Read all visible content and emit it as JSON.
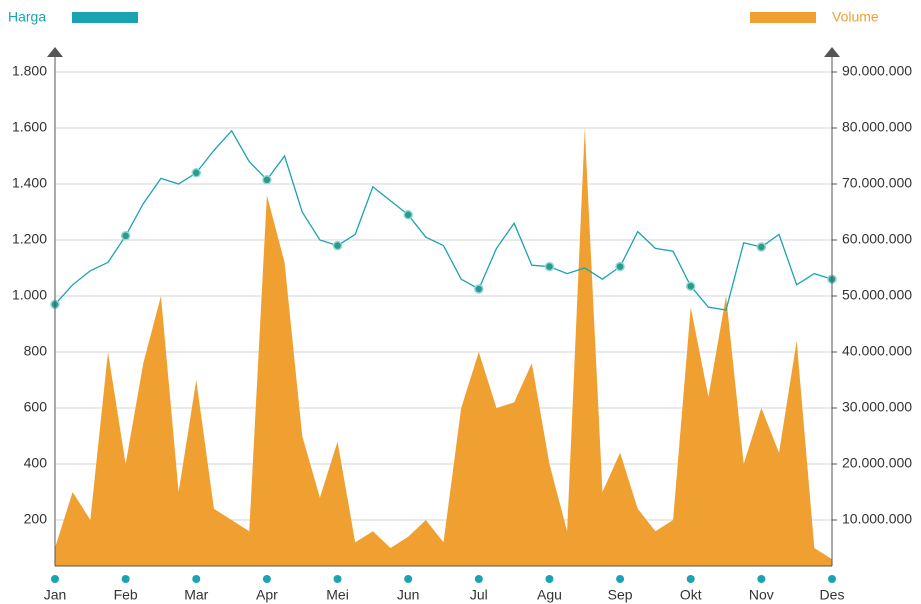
{
  "chart_data": {
    "type": "line-area",
    "categories": [
      "Jan",
      null,
      null,
      null,
      "Feb",
      null,
      null,
      null,
      "Mar",
      null,
      null,
      null,
      "Apr",
      null,
      null,
      null,
      "Mei",
      null,
      null,
      null,
      "Jun",
      null,
      null,
      null,
      "Jul",
      null,
      null,
      null,
      "Agu",
      null,
      null,
      null,
      "Sep",
      null,
      null,
      null,
      "Okt",
      null,
      null,
      null,
      "Nov",
      null,
      null,
      null,
      "Des"
    ],
    "series": [
      {
        "name": "Harga",
        "color": "#1aa3b0",
        "type": "line",
        "axis": "y",
        "values": [
          970,
          1040,
          1090,
          1120,
          1215,
          1330,
          1420,
          1400,
          1440,
          1520,
          1590,
          1480,
          1415,
          1500,
          1300,
          1200,
          1180,
          1220,
          1390,
          1340,
          1290,
          1210,
          1180,
          1060,
          1025,
          1170,
          1260,
          1110,
          1105,
          1080,
          1100,
          1060,
          1105,
          1230,
          1170,
          1160,
          1035,
          960,
          950,
          1190,
          1175,
          1220,
          1040,
          1080,
          1060
        ]
      },
      {
        "name": "Volume",
        "color": "#f0a030",
        "type": "area",
        "axis": "y2",
        "values": [
          5000000,
          15000000,
          10000000,
          40000000,
          20000000,
          38000000,
          50000000,
          15000000,
          35000000,
          12000000,
          10000000,
          8000000,
          68000000,
          56000000,
          25000000,
          14000000,
          24000000,
          6000000,
          8000000,
          5000000,
          7000000,
          10000000,
          6000000,
          30000000,
          40000000,
          30000000,
          31000000,
          38000000,
          20000000,
          8000000,
          80000000,
          15000000,
          22000000,
          12000000,
          8000000,
          10000000,
          48000000,
          32000000,
          50000000,
          20000000,
          30000000,
          22000000,
          42000000,
          5000000,
          3000000
        ]
      }
    ],
    "ylim": [
      0,
      1800
    ],
    "yticks": [
      200,
      400,
      600,
      800,
      {
        "value": 1000,
        "label": "1.000"
      },
      {
        "value": 1200,
        "label": "1.200"
      },
      {
        "value": 1400,
        "label": "1.400"
      },
      {
        "value": 1600,
        "label": "1.600"
      },
      {
        "value": 1800,
        "label": "1.800"
      }
    ],
    "y2lim": [
      0,
      90000000
    ],
    "y2ticks": [
      {
        "value": 10000000,
        "label": "10.000.000"
      },
      {
        "value": 20000000,
        "label": "20.000.000"
      },
      {
        "value": 30000000,
        "label": "30.000.000"
      },
      {
        "value": 40000000,
        "label": "40.000.000"
      },
      {
        "value": 50000000,
        "label": "50.000.000"
      },
      {
        "value": 60000000,
        "label": "60.000.000"
      },
      {
        "value": 70000000,
        "label": "70.000.000"
      },
      {
        "value": 80000000,
        "label": "80.000.000"
      },
      {
        "value": 90000000,
        "label": "90.000.000"
      }
    ],
    "grid": true
  }
}
